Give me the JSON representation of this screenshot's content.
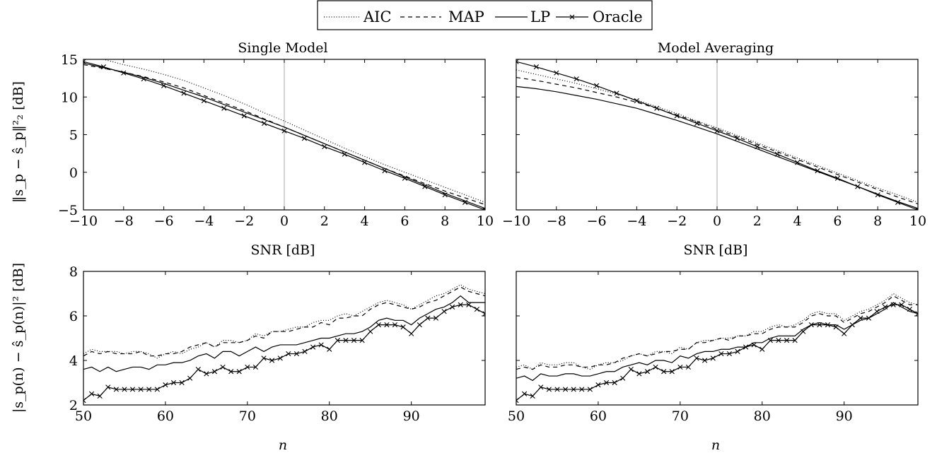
{
  "legend": {
    "entries": [
      {
        "name": "AIC",
        "style": "dotted"
      },
      {
        "name": "MAP",
        "style": "dashed"
      },
      {
        "name": "LP",
        "style": "solid"
      },
      {
        "name": "Oracle",
        "style": "solid-cross"
      }
    ]
  },
  "chart_data": [
    {
      "type": "line",
      "title": "Single Model",
      "xlabel": "SNR [dB]",
      "ylabel": "‖s_p − ŝ_p‖²₂ [dB]",
      "xlim": [
        -10,
        10
      ],
      "ylim": [
        -5,
        15
      ],
      "xticks": [
        -10,
        -8,
        -6,
        -4,
        -2,
        0,
        2,
        4,
        6,
        8,
        10
      ],
      "yticks": [
        -5,
        0,
        5,
        10,
        15
      ],
      "vline": 0,
      "x": [
        -10,
        -9,
        -8,
        -7,
        -6,
        -5,
        -4,
        -3,
        -2,
        -1,
        0,
        1,
        2,
        3,
        4,
        5,
        6,
        7,
        8,
        9,
        10
      ],
      "series": [
        {
          "name": "AIC",
          "values": [
            15.4,
            15.0,
            14.3,
            13.7,
            13.0,
            12.2,
            11.2,
            10.2,
            9.1,
            7.9,
            6.8,
            5.6,
            4.4,
            3.2,
            2.1,
            1.0,
            0.0,
            -1.0,
            -2.0,
            -3.0,
            -4.0
          ]
        },
        {
          "name": "MAP",
          "values": [
            14.3,
            13.8,
            13.3,
            12.7,
            12.0,
            11.2,
            10.2,
            9.2,
            8.2,
            7.1,
            6.0,
            4.9,
            3.8,
            2.7,
            1.6,
            0.5,
            -0.5,
            -1.5,
            -2.5,
            -3.4,
            -4.3
          ]
        },
        {
          "name": "LP",
          "values": [
            14.5,
            13.9,
            13.3,
            12.6,
            11.8,
            10.9,
            10.0,
            9.0,
            8.0,
            7.0,
            6.0,
            4.9,
            3.8,
            2.7,
            1.6,
            0.5,
            -0.6,
            -1.7,
            -2.8,
            -3.8,
            -4.8
          ]
        },
        {
          "name": "Oracle",
          "values": [
            14.7,
            14.0,
            13.2,
            12.4,
            11.5,
            10.5,
            9.5,
            8.5,
            7.5,
            6.5,
            5.5,
            4.5,
            3.4,
            2.4,
            1.3,
            0.2,
            -0.8,
            -1.9,
            -3.0,
            -4.0,
            -5.0
          ]
        }
      ]
    },
    {
      "type": "line",
      "title": "Model Averaging",
      "xlabel": "SNR [dB]",
      "ylabel": "",
      "xlim": [
        -10,
        10
      ],
      "ylim": [
        -5,
        15
      ],
      "xticks": [
        -10,
        -8,
        -6,
        -4,
        -2,
        0,
        2,
        4,
        6,
        8,
        10
      ],
      "yticks": [
        -5,
        0,
        5,
        10,
        15
      ],
      "vline": 0,
      "x": [
        -10,
        -9,
        -8,
        -7,
        -6,
        -5,
        -4,
        -3,
        -2,
        -1,
        0,
        1,
        2,
        3,
        4,
        5,
        6,
        7,
        8,
        9,
        10
      ],
      "series": [
        {
          "name": "AIC",
          "values": [
            13.6,
            13.0,
            12.4,
            11.8,
            11.1,
            10.4,
            9.6,
            8.7,
            7.8,
            6.8,
            5.9,
            4.9,
            3.9,
            2.9,
            1.9,
            0.9,
            -0.1,
            -1.1,
            -2.1,
            -3.0,
            -4.0
          ]
        },
        {
          "name": "MAP",
          "values": [
            12.6,
            12.2,
            11.7,
            11.2,
            10.6,
            10.0,
            9.3,
            8.5,
            7.6,
            6.7,
            5.7,
            4.7,
            3.7,
            2.7,
            1.7,
            0.7,
            -0.3,
            -1.3,
            -2.3,
            -3.3,
            -4.2
          ]
        },
        {
          "name": "LP",
          "values": [
            11.4,
            11.1,
            10.7,
            10.2,
            9.7,
            9.1,
            8.5,
            7.7,
            6.9,
            6.0,
            5.1,
            4.1,
            3.1,
            2.1,
            1.1,
            0.1,
            -0.9,
            -1.9,
            -2.9,
            -3.9,
            -4.8
          ]
        },
        {
          "name": "Oracle",
          "values": [
            14.7,
            14.0,
            13.2,
            12.4,
            11.5,
            10.5,
            9.5,
            8.5,
            7.5,
            6.5,
            5.5,
            4.5,
            3.4,
            2.4,
            1.3,
            0.2,
            -0.8,
            -1.9,
            -3.0,
            -4.0,
            -5.0
          ]
        }
      ]
    },
    {
      "type": "line",
      "title": "",
      "xlabel": "n",
      "ylabel": "|s_p(n) − ŝ_p(n)|² [dB]",
      "xlim": [
        50,
        99
      ],
      "ylim": [
        2,
        8
      ],
      "xticks": [
        50,
        60,
        70,
        80,
        90
      ],
      "yticks": [
        2,
        4,
        6,
        8
      ],
      "x": [
        50,
        51,
        52,
        53,
        54,
        55,
        56,
        57,
        58,
        59,
        60,
        61,
        62,
        63,
        64,
        65,
        66,
        67,
        68,
        69,
        70,
        71,
        72,
        73,
        74,
        75,
        76,
        77,
        78,
        79,
        80,
        81,
        82,
        83,
        84,
        85,
        86,
        87,
        88,
        89,
        90,
        91,
        92,
        93,
        94,
        95,
        96,
        97,
        98,
        99
      ],
      "series": [
        {
          "name": "AIC",
          "values": [
            4.3,
            4.5,
            4.4,
            4.4,
            4.4,
            4.3,
            4.4,
            4.4,
            4.3,
            4.1,
            4.3,
            4.4,
            4.3,
            4.5,
            4.6,
            4.8,
            4.6,
            4.9,
            4.9,
            4.8,
            4.9,
            5.2,
            5.1,
            5.3,
            5.3,
            5.4,
            5.5,
            5.5,
            5.7,
            5.8,
            5.8,
            6.0,
            6.1,
            6.0,
            6.2,
            6.4,
            6.6,
            6.7,
            6.6,
            6.5,
            6.3,
            6.5,
            6.7,
            6.9,
            7.0,
            7.2,
            7.4,
            7.2,
            7.1,
            7.0
          ]
        },
        {
          "name": "MAP",
          "values": [
            4.2,
            4.4,
            4.3,
            4.4,
            4.3,
            4.3,
            4.3,
            4.4,
            4.2,
            4.2,
            4.3,
            4.3,
            4.4,
            4.6,
            4.7,
            4.8,
            4.6,
            4.8,
            4.8,
            4.8,
            4.9,
            5.1,
            5.0,
            5.3,
            5.3,
            5.3,
            5.4,
            5.5,
            5.5,
            5.7,
            5.6,
            5.9,
            5.9,
            6.0,
            6.0,
            6.3,
            6.5,
            6.6,
            6.5,
            6.4,
            6.3,
            6.4,
            6.6,
            6.7,
            6.9,
            7.1,
            7.3,
            7.1,
            7.0,
            6.9
          ]
        },
        {
          "name": "LP",
          "values": [
            3.6,
            3.7,
            3.5,
            3.7,
            3.5,
            3.6,
            3.7,
            3.7,
            3.6,
            3.8,
            3.8,
            3.9,
            3.9,
            4.0,
            4.2,
            4.3,
            4.1,
            4.4,
            4.4,
            4.2,
            4.4,
            4.6,
            4.4,
            4.6,
            4.7,
            4.7,
            4.7,
            4.8,
            4.9,
            5.0,
            5.0,
            5.1,
            5.2,
            5.2,
            5.3,
            5.5,
            5.8,
            5.9,
            5.8,
            5.8,
            5.6,
            5.9,
            6.1,
            6.3,
            6.4,
            6.6,
            6.9,
            6.6,
            6.6,
            6.6
          ]
        },
        {
          "name": "Oracle",
          "values": [
            2.2,
            2.5,
            2.4,
            2.8,
            2.7,
            2.7,
            2.7,
            2.7,
            2.7,
            2.7,
            2.9,
            3.0,
            3.0,
            3.2,
            3.6,
            3.4,
            3.5,
            3.7,
            3.5,
            3.5,
            3.7,
            3.7,
            4.1,
            4.0,
            4.1,
            4.3,
            4.3,
            4.4,
            4.6,
            4.7,
            4.5,
            4.9,
            4.9,
            4.9,
            4.9,
            5.3,
            5.6,
            5.6,
            5.6,
            5.5,
            5.2,
            5.6,
            5.9,
            5.9,
            6.2,
            6.4,
            6.5,
            6.5,
            6.3,
            6.1
          ]
        }
      ]
    },
    {
      "type": "line",
      "title": "",
      "xlabel": "n",
      "ylabel": "",
      "xlim": [
        50,
        99
      ],
      "ylim": [
        2,
        8
      ],
      "xticks": [
        50,
        60,
        70,
        80,
        90
      ],
      "yticks": [
        2,
        4,
        6,
        8
      ],
      "x": [
        50,
        51,
        52,
        53,
        54,
        55,
        56,
        57,
        58,
        59,
        60,
        61,
        62,
        63,
        64,
        65,
        66,
        67,
        68,
        69,
        70,
        71,
        72,
        73,
        74,
        75,
        76,
        77,
        78,
        79,
        80,
        81,
        82,
        83,
        84,
        85,
        86,
        87,
        88,
        89,
        90,
        91,
        92,
        93,
        94,
        95,
        96,
        97,
        98,
        99
      ],
      "series": [
        {
          "name": "AIC",
          "values": [
            3.7,
            3.8,
            3.6,
            3.9,
            3.8,
            3.8,
            3.9,
            3.9,
            3.7,
            3.6,
            3.8,
            3.9,
            3.9,
            4.0,
            4.2,
            4.3,
            4.2,
            4.4,
            4.4,
            4.3,
            4.6,
            4.5,
            4.8,
            4.9,
            4.9,
            5.0,
            5.0,
            5.1,
            5.1,
            5.3,
            5.3,
            5.5,
            5.6,
            5.5,
            5.6,
            5.8,
            6.1,
            6.2,
            6.1,
            6.1,
            5.8,
            6.0,
            6.2,
            6.3,
            6.5,
            6.7,
            7.0,
            6.8,
            6.6,
            6.5
          ]
        },
        {
          "name": "MAP",
          "values": [
            3.6,
            3.7,
            3.6,
            3.8,
            3.7,
            3.7,
            3.8,
            3.8,
            3.7,
            3.7,
            3.8,
            3.8,
            3.9,
            4.1,
            4.2,
            4.3,
            4.2,
            4.3,
            4.4,
            4.4,
            4.5,
            4.5,
            4.8,
            4.8,
            4.9,
            5.0,
            4.9,
            5.1,
            5.1,
            5.2,
            5.2,
            5.4,
            5.5,
            5.5,
            5.5,
            5.7,
            6.0,
            6.1,
            6.0,
            6.0,
            5.7,
            5.9,
            6.1,
            6.2,
            6.4,
            6.6,
            6.9,
            6.7,
            6.5,
            6.5
          ]
        },
        {
          "name": "LP",
          "values": [
            3.2,
            3.3,
            3.1,
            3.4,
            3.3,
            3.3,
            3.4,
            3.4,
            3.3,
            3.3,
            3.4,
            3.5,
            3.5,
            3.7,
            3.8,
            3.9,
            3.8,
            4.0,
            4.0,
            3.9,
            4.2,
            4.1,
            4.3,
            4.4,
            4.4,
            4.5,
            4.5,
            4.6,
            4.6,
            4.8,
            4.8,
            5.0,
            5.1,
            5.1,
            5.1,
            5.4,
            5.6,
            5.7,
            5.6,
            5.6,
            5.4,
            5.6,
            5.8,
            5.9,
            6.1,
            6.3,
            6.6,
            6.4,
            6.2,
            6.1
          ]
        },
        {
          "name": "Oracle",
          "values": [
            2.2,
            2.5,
            2.4,
            2.8,
            2.7,
            2.7,
            2.7,
            2.7,
            2.7,
            2.7,
            2.9,
            3.0,
            3.0,
            3.2,
            3.6,
            3.4,
            3.5,
            3.7,
            3.5,
            3.5,
            3.7,
            3.7,
            4.1,
            4.0,
            4.1,
            4.3,
            4.3,
            4.4,
            4.6,
            4.7,
            4.5,
            4.9,
            4.9,
            4.9,
            4.9,
            5.3,
            5.6,
            5.6,
            5.6,
            5.5,
            5.2,
            5.6,
            5.9,
            5.9,
            6.2,
            6.4,
            6.5,
            6.5,
            6.3,
            6.1
          ]
        }
      ]
    }
  ]
}
